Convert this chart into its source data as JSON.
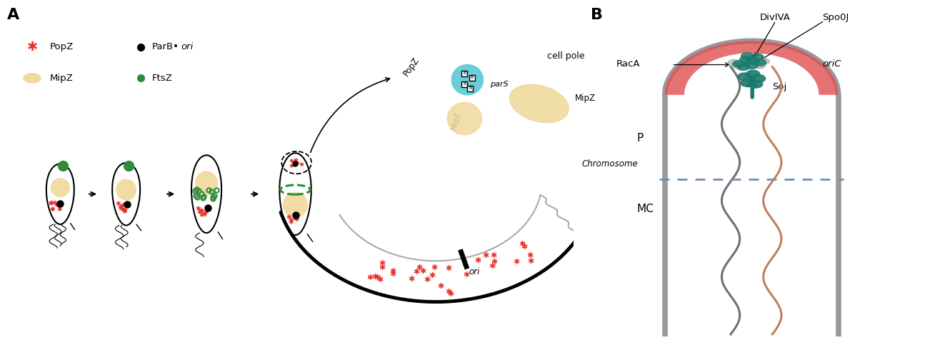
{
  "panel_A_label": "A",
  "panel_B_label": "B",
  "legend": {
    "popz_label": "PopZ",
    "parb_label": "ParB•",
    "ori_italic": "ori",
    "mipz_label": "MipZ",
    "ftsz_label": "FtsZ"
  },
  "zoom_labels": {
    "cell_pole": "cell pole",
    "popz": "PopZ",
    "mipz_outer": "MipZ",
    "mipz_inner": "MipZ",
    "pars": "parS",
    "ori": "ori",
    "chromosome": "Chromosome"
  },
  "panel_b_labels": {
    "diviva": "DivIVA",
    "spo0j": "Spo0J",
    "raca": "RacA",
    "oric": "oriC",
    "soj": "Soj",
    "P": "P",
    "MC": "MC"
  },
  "colors": {
    "red": "#e8302a",
    "tan": "#f0d99a",
    "cyan": "#5bc8d4",
    "teal": "#1a7a6e",
    "black": "#1a1a1a",
    "green": "#2e8b3a",
    "gray": "#999999",
    "dashed_blue": "#7090b0",
    "cell_wall": "#999999",
    "red_cap": "#e05050",
    "chrom_brown": "#c08060",
    "chrom_gray": "#707070"
  },
  "background": "#ffffff"
}
